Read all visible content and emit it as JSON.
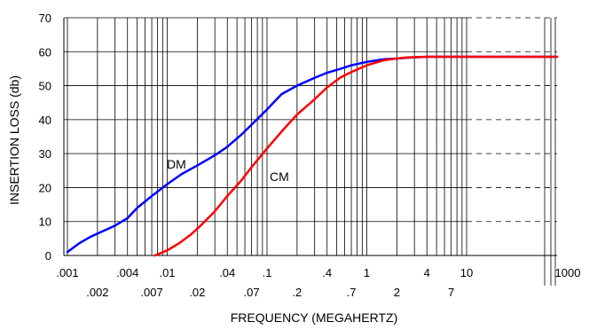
{
  "chart_data": {
    "type": "line",
    "xlabel": "FREQUENCY (MEGAHERTZ)",
    "ylabel": "INSERTION LOSS (db)",
    "xscale": "log",
    "xlim": [
      0.0009,
      1000
    ],
    "ylim": [
      0,
      70
    ],
    "grid": true,
    "y_ticks": [
      {
        "value": 0,
        "label": "0"
      },
      {
        "value": 10,
        "label": "10"
      },
      {
        "value": 20,
        "label": "20"
      },
      {
        "value": 30,
        "label": "30"
      },
      {
        "value": 40,
        "label": "40"
      },
      {
        "value": 50,
        "label": "50"
      },
      {
        "value": 60,
        "label": "60"
      },
      {
        "value": 70,
        "label": "70"
      }
    ],
    "x_ticks_upper": [
      {
        "value": 0.001,
        "label": ".001"
      },
      {
        "value": 0.004,
        "label": ".004"
      },
      {
        "value": 0.01,
        "label": ".01"
      },
      {
        "value": 0.04,
        "label": ".04"
      },
      {
        "value": 0.1,
        "label": ".1"
      },
      {
        "value": 0.4,
        "label": ".4"
      },
      {
        "value": 1,
        "label": "1"
      },
      {
        "value": 4,
        "label": "4"
      },
      {
        "value": 10,
        "label": "10"
      },
      {
        "value": 1000,
        "label": "1000"
      }
    ],
    "x_ticks_lower": [
      {
        "value": 0.002,
        "label": ".002"
      },
      {
        "value": 0.007,
        "label": ".007"
      },
      {
        "value": 0.02,
        "label": ".02"
      },
      {
        "value": 0.07,
        "label": ".07"
      },
      {
        "value": 0.2,
        "label": ".2"
      },
      {
        "value": 0.7,
        "label": ".7"
      },
      {
        "value": 2,
        "label": "2"
      },
      {
        "value": 7,
        "label": "7"
      }
    ],
    "series": [
      {
        "name": "DM",
        "color": "#0000ff",
        "points": [
          [
            0.001,
            1
          ],
          [
            0.0013,
            3.5
          ],
          [
            0.0017,
            5.5
          ],
          [
            0.0022,
            7
          ],
          [
            0.003,
            8.8
          ],
          [
            0.004,
            11
          ],
          [
            0.005,
            14
          ],
          [
            0.007,
            17.5
          ],
          [
            0.01,
            21
          ],
          [
            0.014,
            24
          ],
          [
            0.02,
            26.5
          ],
          [
            0.03,
            29.5
          ],
          [
            0.04,
            32
          ],
          [
            0.055,
            35.5
          ],
          [
            0.07,
            38.5
          ],
          [
            0.1,
            43
          ],
          [
            0.14,
            47.5
          ],
          [
            0.2,
            50
          ],
          [
            0.3,
            52.3
          ],
          [
            0.4,
            53.8
          ],
          [
            0.55,
            55
          ],
          [
            0.7,
            56
          ],
          [
            1,
            57
          ],
          [
            1.5,
            57.8
          ],
          [
            2,
            58
          ],
          [
            2.5,
            58.2
          ],
          [
            4,
            58.5
          ],
          [
            10,
            58.5
          ],
          [
            1000,
            58.5
          ]
        ]
      },
      {
        "name": "CM",
        "color": "#ff0000",
        "points": [
          [
            0.0075,
            0
          ],
          [
            0.01,
            1.5
          ],
          [
            0.013,
            3.5
          ],
          [
            0.017,
            6
          ],
          [
            0.022,
            9
          ],
          [
            0.03,
            13
          ],
          [
            0.04,
            17.5
          ],
          [
            0.055,
            22
          ],
          [
            0.07,
            26
          ],
          [
            0.1,
            31.5
          ],
          [
            0.14,
            36.5
          ],
          [
            0.2,
            41.5
          ],
          [
            0.3,
            46
          ],
          [
            0.4,
            49.5
          ],
          [
            0.55,
            52.5
          ],
          [
            0.7,
            54
          ],
          [
            1,
            56
          ],
          [
            1.5,
            57.5
          ],
          [
            2,
            58
          ],
          [
            2.5,
            58.3
          ],
          [
            4,
            58.5
          ],
          [
            10,
            58.5
          ],
          [
            1000,
            58.5
          ]
        ]
      }
    ]
  }
}
